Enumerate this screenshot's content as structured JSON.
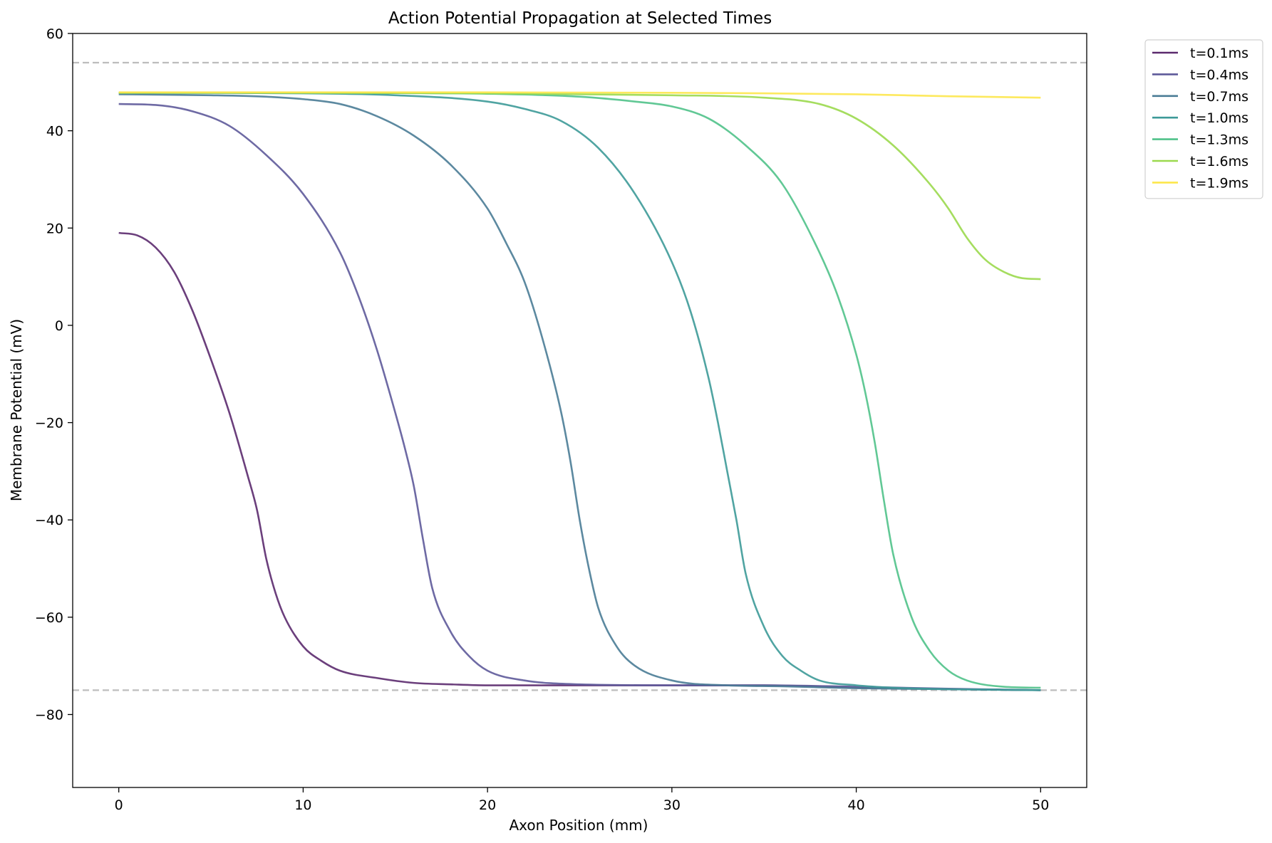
{
  "chart_data": {
    "type": "line",
    "title": "Action Potential Propagation at Selected Times",
    "xlabel": "Axon Position (mm)",
    "ylabel": "Membrane Potential (mV)",
    "xlim": [
      -2.5,
      52.5
    ],
    "ylim": [
      -95,
      60
    ],
    "xticks": [
      0,
      10,
      20,
      30,
      40,
      50
    ],
    "yticks": [
      -80,
      -60,
      -40,
      -20,
      0,
      20,
      40,
      60
    ],
    "xtick_labels": [
      "0",
      "10",
      "20",
      "30",
      "40",
      "50"
    ],
    "ytick_labels": [
      "−80",
      "−60",
      "−40",
      "−20",
      "0",
      "20",
      "40",
      "60"
    ],
    "grid": false,
    "legend_position": "outside-top-right",
    "reference_lines": [
      {
        "y": 54,
        "style": "dashed",
        "color": "#bdbdbd"
      },
      {
        "y": -75,
        "style": "dashed",
        "color": "#bdbdbd"
      }
    ],
    "series": [
      {
        "name": "t=0.1ms",
        "color": "#5b2a6e",
        "x": [
          0,
          1,
          2,
          3,
          4,
          5,
          6,
          7,
          7.5,
          8,
          8.5,
          9,
          10,
          11,
          12,
          14,
          16,
          18,
          20,
          25,
          30,
          35,
          40,
          45,
          50
        ],
        "y": [
          19,
          18.5,
          16,
          11,
          3,
          -7,
          -18,
          -31,
          -38,
          -48,
          -55,
          -60,
          -66,
          -69,
          -71,
          -72.5,
          -73.5,
          -73.8,
          -74,
          -74,
          -74,
          -74,
          -74.5,
          -74.8,
          -75
        ]
      },
      {
        "name": "t=0.4ms",
        "color": "#5e5a9a",
        "x": [
          0,
          2,
          4,
          6,
          8,
          10,
          12,
          13,
          14,
          15,
          15.5,
          16,
          16.5,
          17,
          18,
          19,
          20,
          22,
          25,
          30,
          35,
          40,
          45,
          50
        ],
        "y": [
          45.5,
          45.3,
          44,
          41,
          35,
          27,
          15,
          6,
          -5,
          -18,
          -25,
          -33,
          -44,
          -54,
          -63,
          -68,
          -71,
          -73,
          -73.8,
          -74,
          -74,
          -74.3,
          -74.7,
          -75
        ]
      },
      {
        "name": "t=0.7ms",
        "color": "#4a7c96",
        "x": [
          0,
          5,
          8,
          10,
          12,
          14,
          16,
          18,
          20,
          21,
          22,
          23,
          24,
          24.5,
          25,
          25.5,
          26,
          27,
          28,
          30,
          33,
          36,
          40,
          45,
          50
        ],
        "y": [
          47.5,
          47.3,
          47,
          46.5,
          45.5,
          43,
          39,
          33,
          24,
          17,
          9,
          -3,
          -18,
          -28,
          -40,
          -50,
          -58,
          -66,
          -70,
          -73,
          -74,
          -74.2,
          -74.6,
          -74.8,
          -75
        ]
      },
      {
        "name": "t=1.0ms",
        "color": "#3d9a98",
        "x": [
          0,
          10,
          15,
          20,
          22,
          24,
          26,
          28,
          30,
          31,
          32,
          32.5,
          33,
          33.5,
          34,
          35,
          36,
          37,
          38,
          40,
          42,
          45,
          50
        ],
        "y": [
          47.8,
          47.7,
          47.3,
          46,
          44.5,
          42,
          36.5,
          27,
          13,
          3,
          -11,
          -20,
          -30,
          -40,
          -51,
          -62,
          -68,
          -71,
          -73,
          -74,
          -74.5,
          -74.8,
          -75
        ]
      },
      {
        "name": "t=1.3ms",
        "color": "#50c28a",
        "x": [
          0,
          10,
          20,
          25,
          28,
          30,
          32,
          34,
          36,
          38,
          39,
          40,
          40.5,
          41,
          41.5,
          42,
          43,
          44,
          45,
          46,
          48,
          50
        ],
        "y": [
          47.8,
          47.8,
          47.6,
          47,
          46,
          45,
          42.5,
          37,
          29,
          15,
          6,
          -6,
          -14,
          -24,
          -36,
          -47,
          -60,
          -67,
          -71,
          -73,
          -74.3,
          -74.5
        ]
      },
      {
        "name": "t=1.6ms",
        "color": "#9bd94e",
        "x": [
          0,
          10,
          20,
          30,
          35,
          38,
          40,
          42,
          44,
          45,
          46,
          47,
          48,
          49,
          50
        ],
        "y": [
          47.8,
          47.8,
          47.7,
          47.3,
          46.8,
          45.5,
          42.5,
          37,
          29,
          24,
          18,
          13.5,
          11,
          9.7,
          9.5
        ]
      },
      {
        "name": "t=1.9ms",
        "color": "#fde74c",
        "x": [
          0,
          10,
          20,
          30,
          35,
          40,
          45,
          50
        ],
        "y": [
          47.9,
          47.9,
          47.9,
          47.8,
          47.7,
          47.5,
          47.1,
          46.8
        ]
      }
    ]
  }
}
